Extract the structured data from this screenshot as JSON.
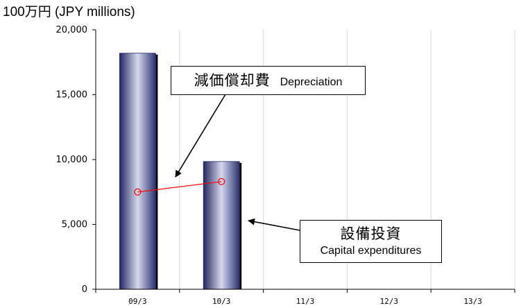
{
  "unit_label": "100万円 (JPY millions)",
  "callouts": {
    "depreciation_jp": "減価償却費",
    "depreciation_en": "Depreciation",
    "capex_jp": "設備投資",
    "capex_en": "Capital expenditures"
  },
  "chart_data": {
    "type": "bar",
    "categories": [
      "09/3",
      "10/3",
      "11/3",
      "12/3",
      "13/3"
    ],
    "series": [
      {
        "name": "設備投資 Capital expenditures",
        "kind": "bar",
        "values": [
          18200,
          9850,
          null,
          null,
          null
        ]
      },
      {
        "name": "減価償却費 Depreciation",
        "kind": "line",
        "values": [
          7500,
          8300,
          null,
          null,
          null
        ]
      }
    ],
    "y_ticks": [
      0,
      5000,
      10000,
      15000,
      20000
    ],
    "y_tick_labels": [
      "0",
      "5,000",
      "10,000",
      "15,000",
      "20,000"
    ],
    "ylim": [
      0,
      20000
    ],
    "title": "",
    "xlabel": "",
    "ylabel": "100万円 (JPY millions)",
    "grid": "vertical category separators",
    "colors": {
      "bar": "#4a4f8f",
      "line": "#ff0000"
    }
  }
}
